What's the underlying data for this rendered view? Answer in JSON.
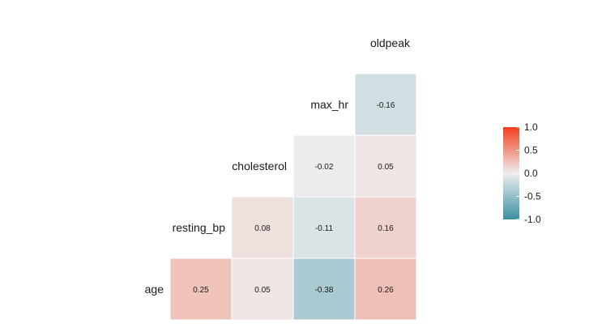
{
  "chart_data": {
    "type": "heatmap",
    "title": "",
    "variables": [
      "age",
      "resting_bp",
      "cholesterol",
      "max_hr",
      "oldpeak"
    ],
    "cells": [
      {
        "row": "age",
        "col": "resting_bp",
        "value": 0.25,
        "label": "0.25"
      },
      {
        "row": "age",
        "col": "cholesterol",
        "value": 0.05,
        "label": "0.05"
      },
      {
        "row": "age",
        "col": "max_hr",
        "value": -0.38,
        "label": "-0.38"
      },
      {
        "row": "age",
        "col": "oldpeak",
        "value": 0.26,
        "label": "0.26"
      },
      {
        "row": "resting_bp",
        "col": "cholesterol",
        "value": 0.08,
        "label": "0.08"
      },
      {
        "row": "resting_bp",
        "col": "max_hr",
        "value": -0.11,
        "label": "-0.11"
      },
      {
        "row": "resting_bp",
        "col": "oldpeak",
        "value": 0.16,
        "label": "0.16"
      },
      {
        "row": "cholesterol",
        "col": "max_hr",
        "value": -0.02,
        "label": "-0.02"
      },
      {
        "row": "cholesterol",
        "col": "oldpeak",
        "value": 0.05,
        "label": "0.05"
      },
      {
        "row": "max_hr",
        "col": "oldpeak",
        "value": -0.16,
        "label": "-0.16"
      }
    ],
    "legend": {
      "placement": "right",
      "range": [
        -1,
        1
      ],
      "ticks": [
        "1.0",
        "0.5",
        "0.0",
        "-0.5",
        "-1.0"
      ],
      "colors": {
        "low": "#3a8fa3",
        "mid": "#eeeeee",
        "high": "#f33d1c"
      }
    }
  }
}
